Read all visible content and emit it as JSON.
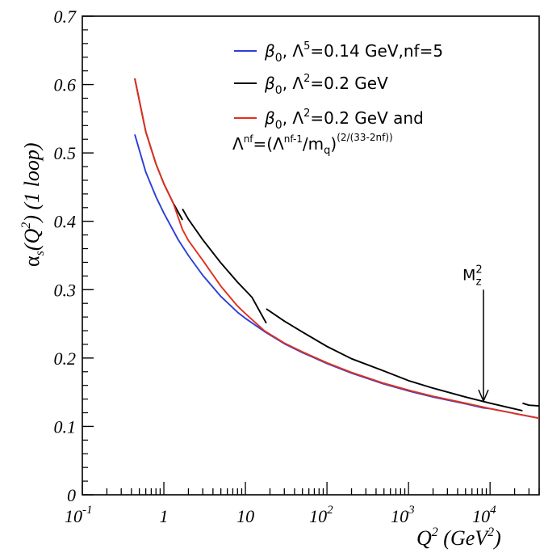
{
  "chart_data": {
    "type": "line",
    "xscale": "log",
    "xlim": [
      0.1,
      40000
    ],
    "ylim": [
      0,
      0.7
    ],
    "grid": false,
    "legend_position": "top-right",
    "colors": {
      "blue": "#2b3fd6",
      "black": "#000000",
      "red": "#e0301e"
    },
    "xlabel": {
      "main": "Q",
      "sup": "2",
      "unit_open": " (GeV",
      "unit_sup": "2",
      "unit_close": ")"
    },
    "ylabel": {
      "alpha": "α",
      "sub": "s",
      "open": "(Q",
      "sup": "2",
      "close": ") (1 loop)"
    },
    "x_ticks": [
      {
        "value": 0.1,
        "base": "10",
        "exp": "-1"
      },
      {
        "value": 1,
        "base": "1",
        "exp": ""
      },
      {
        "value": 10,
        "base": "10",
        "exp": ""
      },
      {
        "value": 100,
        "base": "10",
        "exp": "2"
      },
      {
        "value": 1000,
        "base": "10",
        "exp": "3"
      },
      {
        "value": 10000,
        "base": "10",
        "exp": "4"
      }
    ],
    "y_ticks": [
      {
        "value": 0,
        "label": "0"
      },
      {
        "value": 0.1,
        "label": "0.1"
      },
      {
        "value": 0.2,
        "label": "0.2"
      },
      {
        "value": 0.3,
        "label": "0.3"
      },
      {
        "value": 0.4,
        "label": "0.4"
      },
      {
        "value": 0.5,
        "label": "0.5"
      },
      {
        "value": 0.6,
        "label": "0.6"
      },
      {
        "value": 0.7,
        "label": "0.7"
      }
    ],
    "series": [
      {
        "color": "#2b3fd6",
        "legend": [
          "β",
          "0",
          ", Λ",
          "5",
          "=0.14 GeV,nf=5"
        ],
        "segments": [
          {
            "x": [
              0.44,
              0.6,
              0.8,
              1.0,
              1.5,
              2.0,
              3.0,
              5.0,
              8.0,
              10,
              17,
              30,
              50,
              100,
              200,
              500,
              1000,
              2000,
              5000,
              8300,
              10000,
              20000,
              40000
            ],
            "y": [
              0.527,
              0.472,
              0.436,
              0.412,
              0.373,
              0.35,
              0.321,
              0.29,
              0.267,
              0.258,
              0.239,
              0.221,
              0.208,
              0.192,
              0.178,
              0.162,
              0.152,
              0.143,
              0.133,
              0.127,
              0.126,
              0.119,
              0.112
            ]
          }
        ]
      },
      {
        "color": "#000000",
        "legend": [
          "β",
          "0",
          ", Λ",
          "2",
          "=0.2 GeV"
        ],
        "segments": [
          {
            "x": [
              0.44,
              0.6,
              0.8,
              1.0,
              1.3,
              1.69
            ],
            "y": [
              0.609,
              0.531,
              0.484,
              0.455,
              0.427,
              0.402
            ]
          },
          {
            "x": [
              1.69,
              2.0,
              3.0,
              5.0,
              8.0,
              12.0,
              18.0
            ],
            "y": [
              0.418,
              0.403,
              0.373,
              0.339,
              0.311,
              0.289,
              0.251
            ]
          },
          {
            "x": [
              18.0,
              30,
              50,
              100,
              200,
              500,
              1000,
              2000,
              5000,
              10000,
              25000
            ],
            "y": [
              0.272,
              0.254,
              0.238,
              0.217,
              0.199,
              0.181,
              0.167,
              0.156,
              0.143,
              0.134,
              0.123
            ]
          },
          {
            "x": [
              25000,
              30000,
              40000
            ],
            "y": [
              0.134,
              0.131,
              0.13
            ]
          }
        ]
      },
      {
        "color": "#e0301e",
        "legend": [
          "β",
          "0",
          ", Λ",
          "2",
          "=0.2 GeV and"
        ],
        "legend2": [
          "Λ",
          "nf",
          "=(Λ",
          "nf-1",
          "/m",
          "q",
          ")",
          "(2/(33-2nf))"
        ],
        "segments": [
          {
            "x": [
              0.44,
              0.6,
              0.8,
              1.0,
              1.3,
              1.69,
              2.0,
              3.0,
              5.0,
              8.0,
              10,
              17,
              30,
              50,
              100,
              200,
              500,
              1000,
              2000,
              5000,
              10000,
              20000,
              40000
            ],
            "y": [
              0.609,
              0.531,
              0.484,
              0.455,
              0.427,
              0.388,
              0.372,
              0.343,
              0.305,
              0.276,
              0.265,
              0.24,
              0.222,
              0.209,
              0.193,
              0.179,
              0.163,
              0.153,
              0.144,
              0.134,
              0.126,
              0.119,
              0.112
            ]
          }
        ]
      }
    ],
    "annotation": {
      "text": "M",
      "sup": "2",
      "sub": "z",
      "x": 8300,
      "y_from": 0.3,
      "y_to": 0.137
    }
  }
}
